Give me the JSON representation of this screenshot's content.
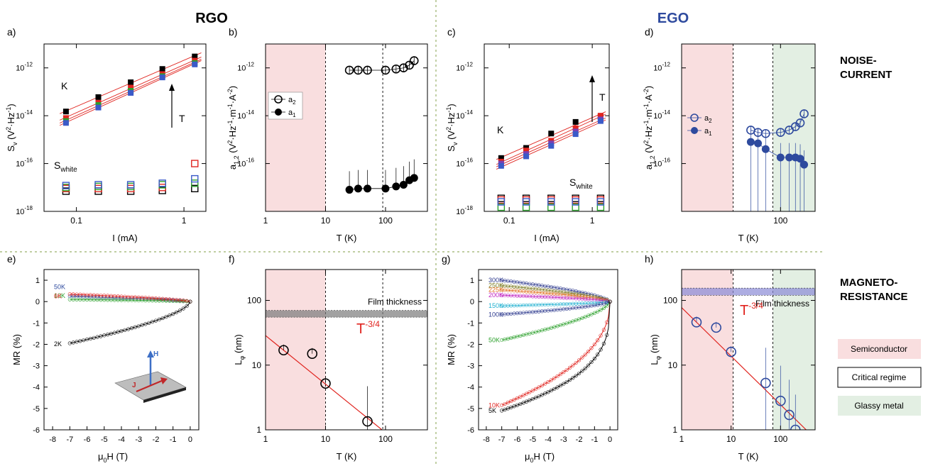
{
  "header": {
    "left": "RGO",
    "right": "EGO",
    "right_color": "#2e4a9e"
  },
  "row_labels": {
    "top": [
      "NOISE-",
      "CURRENT"
    ],
    "bottom": [
      "MAGNETO-",
      "RESISTANCE"
    ]
  },
  "legend_regimes": [
    {
      "label": "Semiconductor",
      "color": "#f9dedf"
    },
    {
      "label": "Critical regime",
      "color": "#ffffff"
    },
    {
      "label": "Glassy metal",
      "color": "#e3efe3"
    }
  ],
  "colors": {
    "shade_red": "#f9dedf",
    "shade_green": "#e3efe3",
    "fit": "#e0241f",
    "blue": "#2e4a9e",
    "black": "#000000"
  },
  "chart_data": [
    {
      "panel": "a)",
      "type": "scatter",
      "xlabel": "I (mA)",
      "ylabel": "S_v (V²·Hz⁻¹)",
      "xscale": "log",
      "yscale": "log",
      "xlim": [
        0.05,
        1.6
      ],
      "ylim": [
        1e-18,
        1e-11
      ],
      "xticks": [
        {
          "v": 0.1,
          "label": "0.1"
        },
        {
          "v": 1,
          "label": "1"
        }
      ],
      "yticks": [
        {
          "e": "-18"
        },
        {
          "e": "-16"
        },
        {
          "e": "-14"
        },
        {
          "e": "-12"
        }
      ],
      "annotations": [
        "K",
        "T",
        "S_white"
      ],
      "x": [
        0.08,
        0.16,
        0.32,
        0.63,
        1.26
      ],
      "series": [
        {
          "color": "#000000",
          "marker": "square",
          "values": [
            1.5e-14,
            6e-14,
            2.5e-13,
            9e-13,
            3e-12
          ]
        },
        {
          "color": "#e0241f",
          "marker": "square",
          "values": [
            8e-15,
            3.5e-14,
            1.5e-13,
            5.5e-13,
            2e-12
          ]
        },
        {
          "color": "#2ca02c",
          "marker": "square",
          "values": [
            6e-15,
            2.8e-14,
            1.1e-13,
            4.5e-13,
            1.6e-12
          ]
        },
        {
          "color": "#3b5ac8",
          "marker": "square",
          "values": [
            5e-15,
            2.2e-14,
            9e-14,
            4e-13,
            1.4e-12
          ]
        },
        {
          "color": "#000000",
          "marker": "open-square",
          "values": [
            7e-18,
            7e-18,
            7e-18,
            7.5e-18,
            9e-18
          ]
        },
        {
          "color": "#e0241f",
          "marker": "open-square",
          "values": [
            9e-18,
            9e-18,
            9e-18,
            1e-17,
            1e-16
          ]
        },
        {
          "color": "#2ca02c",
          "marker": "open-square",
          "values": [
            1e-17,
            1.1e-17,
            1.1e-17,
            1.3e-17,
            1.5e-17
          ]
        },
        {
          "color": "#3b5ac8",
          "marker": "open-square",
          "values": [
            1.2e-17,
            1.3e-17,
            1.3e-17,
            1.5e-17,
            2.3e-17
          ]
        }
      ]
    },
    {
      "panel": "b)",
      "type": "scatter",
      "xlabel": "T (K)",
      "ylabel": "a_1,2 (V²·Hz⁻¹·m⁻¹·A⁻²)",
      "xscale": "log",
      "yscale": "log",
      "xlim": [
        1,
        500
      ],
      "ylim": [
        1e-18,
        1e-11
      ],
      "xticks": [
        {
          "v": 1,
          "label": "1"
        },
        {
          "v": 10,
          "label": "10"
        },
        {
          "v": 100,
          "label": "100"
        }
      ],
      "yticks": [
        {
          "e": "-16"
        },
        {
          "e": "-14"
        },
        {
          "e": "-12"
        }
      ],
      "legend": [
        "a₂",
        "a₁"
      ],
      "series": [
        {
          "name": "a₂",
          "marker": "open-circle",
          "color": "#000000",
          "x": [
            25,
            35,
            50,
            100,
            150,
            200,
            250,
            300
          ],
          "values": [
            8e-13,
            8e-13,
            8e-13,
            8e-13,
            9e-13,
            1e-12,
            1.3e-12,
            2e-12
          ]
        },
        {
          "name": "a₁",
          "marker": "filled-circle",
          "color": "#000000",
          "x": [
            25,
            35,
            50,
            100,
            150,
            200,
            250,
            300
          ],
          "values": [
            8e-18,
            9e-18,
            9e-18,
            9e-18,
            1.1e-17,
            1.3e-17,
            2e-17,
            2.5e-17
          ]
        }
      ]
    },
    {
      "panel": "c)",
      "type": "scatter",
      "xlabel": "I (mA)",
      "ylabel": "S_v (V²·Hz⁻¹)",
      "xscale": "log",
      "yscale": "log",
      "xlim": [
        0.05,
        1.6
      ],
      "ylim": [
        1e-18,
        1e-11
      ],
      "xticks": [
        {
          "v": 0.1,
          "label": "0.1"
        },
        {
          "v": 1,
          "label": "1"
        }
      ],
      "yticks": [
        {
          "e": "-18"
        },
        {
          "e": "-16"
        },
        {
          "e": "-14"
        },
        {
          "e": "-12"
        }
      ],
      "annotations": [
        "K",
        "T",
        "S_white"
      ],
      "x": [
        0.08,
        0.16,
        0.32,
        0.63,
        1.26
      ],
      "series": [
        {
          "color": "#000000",
          "marker": "square",
          "values": [
            1.7e-16,
            4.5e-16,
            1.8e-15,
            5.5e-15,
            9e-15
          ]
        },
        {
          "color": "#e0241f",
          "marker": "square",
          "values": [
            1.2e-16,
            3.5e-16,
            9e-16,
            3e-15,
            1e-14
          ]
        },
        {
          "color": "#7b3fb0",
          "marker": "square",
          "values": [
            1e-16,
            2.5e-16,
            7e-16,
            2.2e-15,
            7e-15
          ]
        },
        {
          "color": "#3b5ac8",
          "marker": "square",
          "values": [
            8e-17,
            2e-16,
            5.5e-16,
            1.7e-15,
            6e-15
          ]
        },
        {
          "color": "#000000",
          "marker": "open-square",
          "values": [
            3.5e-18,
            3.5e-18,
            3.5e-18,
            3.5e-18,
            3.5e-18
          ]
        },
        {
          "color": "#e0241f",
          "marker": "open-square",
          "values": [
            3e-18,
            3e-18,
            3e-18,
            3e-18,
            3e-18
          ]
        },
        {
          "color": "#2ca02c",
          "marker": "open-square",
          "values": [
            1.5e-18,
            1.5e-18,
            1.5e-18,
            1.5e-18,
            1.5e-18
          ]
        },
        {
          "color": "#3b5ac8",
          "marker": "open-square",
          "values": [
            2.5e-18,
            2.5e-18,
            2.5e-18,
            2.5e-18,
            2.5e-18
          ]
        }
      ]
    },
    {
      "panel": "d)",
      "type": "scatter",
      "xlabel": "T (K)",
      "ylabel": "a_1,2 (V²·Hz⁻¹·m⁻¹·A⁻²)",
      "xscale": "log",
      "yscale": "log",
      "xlim": [
        1,
        500
      ],
      "ylim": [
        1e-18,
        1e-11
      ],
      "xticks": [
        {
          "v": 100,
          "label": "100"
        }
      ],
      "yticks": [
        {
          "e": "-16"
        },
        {
          "e": "-14"
        },
        {
          "e": "-12"
        }
      ],
      "legend": [
        "a₂",
        "a₁"
      ],
      "series": [
        {
          "name": "a₂",
          "marker": "open-circle",
          "color": "#2e4a9e",
          "x": [
            25,
            35,
            50,
            100,
            150,
            200,
            250,
            300
          ],
          "values": [
            2.5e-15,
            2e-15,
            1.8e-15,
            2e-15,
            2.5e-15,
            3.5e-15,
            5e-15,
            1.2e-14
          ]
        },
        {
          "name": "a₁",
          "marker": "filled-circle",
          "color": "#2e4a9e",
          "x": [
            25,
            35,
            50,
            100,
            150,
            200,
            250,
            300
          ],
          "values": [
            8e-16,
            7e-16,
            4e-16,
            1.8e-16,
            1.8e-16,
            1.8e-16,
            1.6e-16,
            9e-17
          ]
        }
      ]
    },
    {
      "panel": "e)",
      "type": "line",
      "xlabel": "μ₀H (T)",
      "ylabel": "MR (%)",
      "xlim": [
        -8.5,
        0.5
      ],
      "ylim": [
        -6,
        1.5
      ],
      "xticks": [
        -8,
        -7,
        -6,
        -5,
        -4,
        -3,
        -2,
        -1,
        0
      ],
      "yticks": [
        -6,
        -5,
        -4,
        -3,
        -2,
        -1,
        0,
        1
      ],
      "inset_labels": [
        "H",
        "J"
      ],
      "series": [
        {
          "name": "50K",
          "color": "#2e4a9e",
          "mr_at_minus7": 0.25,
          "shape": 1.5
        },
        {
          "name": "10K",
          "color": "#2ca02c",
          "mr_at_minus7": 0.1,
          "shape": 1.5
        },
        {
          "name": "6K",
          "color": "#e0241f",
          "mr_at_minus7": 0.35,
          "shape": 1.5
        },
        {
          "name": "2K",
          "color": "#000000",
          "mr_at_minus7": -1.95,
          "shape": 1.6
        }
      ]
    },
    {
      "panel": "f)",
      "type": "scatter",
      "xlabel": "T (K)",
      "ylabel": "L_φ (nm)",
      "xscale": "log",
      "yscale": "log",
      "xlim": [
        1,
        500
      ],
      "ylim": [
        1,
        300
      ],
      "xticks": [
        {
          "v": 1,
          "label": "1"
        },
        {
          "v": 10,
          "label": "10"
        },
        {
          "v": 100,
          "label": "100"
        }
      ],
      "yticks": [
        {
          "v": 1,
          "label": "1"
        },
        {
          "v": 10,
          "label": "10"
        },
        {
          "v": 100,
          "label": "100"
        }
      ],
      "film_thickness_label": "Film thickness",
      "film_thickness_nm": [
        55,
        70
      ],
      "fit_label": "T",
      "fit_exponent": "-3/4",
      "series": [
        {
          "marker": "open-circle",
          "color": "#000000",
          "x": [
            2,
            6,
            10,
            50
          ],
          "values": [
            17,
            15,
            5.2,
            1.35
          ]
        }
      ]
    },
    {
      "panel": "g)",
      "type": "line",
      "xlabel": "μ₀H (T)",
      "ylabel": "MR (%)",
      "xlim": [
        -8.5,
        0.5
      ],
      "ylim": [
        -6,
        1.5
      ],
      "xticks": [
        -8,
        -7,
        -6,
        -5,
        -4,
        -3,
        -2,
        -1,
        0
      ],
      "yticks": [
        -6,
        -5,
        -4,
        -3,
        -2,
        -1,
        0,
        1
      ],
      "series": [
        {
          "name": "300K",
          "color": "#2e3a8e",
          "mr_at_minus7": 1.0,
          "shape": 1.6
        },
        {
          "name": "250K",
          "color": "#7a7a20",
          "mr_at_minus7": 0.75,
          "shape": 1.6
        },
        {
          "name": "225K",
          "color": "#e07020",
          "mr_at_minus7": 0.55,
          "shape": 1.6
        },
        {
          "name": "200K",
          "color": "#c020c0",
          "mr_at_minus7": 0.3,
          "shape": 1.6
        },
        {
          "name": "150K",
          "color": "#20b0d0",
          "mr_at_minus7": -0.2,
          "shape": 1.6
        },
        {
          "name": "100K",
          "color": "#2e3a8e",
          "mr_at_minus7": -0.6,
          "shape": 1.6
        },
        {
          "name": "50K",
          "color": "#2ca02c",
          "mr_at_minus7": -1.8,
          "shape": 1.6
        },
        {
          "name": "10K",
          "color": "#e0241f",
          "mr_at_minus7": -4.85,
          "shape": 2.2
        },
        {
          "name": "5K",
          "color": "#000000",
          "mr_at_minus7": -5.1,
          "shape": 3.0
        }
      ]
    },
    {
      "panel": "h)",
      "type": "scatter",
      "xlabel": "T (K)",
      "ylabel": "L_φ (nm)",
      "xscale": "log",
      "yscale": "log",
      "xlim": [
        1,
        500
      ],
      "ylim": [
        1,
        300
      ],
      "xticks": [
        {
          "v": 1,
          "label": "1"
        },
        {
          "v": 10,
          "label": "10"
        },
        {
          "v": 100,
          "label": "100"
        }
      ],
      "yticks": [
        {
          "v": 1,
          "label": "1"
        },
        {
          "v": 10,
          "label": "10"
        },
        {
          "v": 100,
          "label": "100"
        }
      ],
      "film_thickness_label": "Film thickness",
      "film_thickness_nm": [
        120,
        155
      ],
      "fit_label": "T",
      "fit_exponent": "-3/4",
      "series": [
        {
          "marker": "open-circle",
          "color": "#2e4a9e",
          "x": [
            2,
            5,
            10,
            50,
            100,
            150,
            200
          ],
          "values": [
            46,
            38,
            16,
            5.3,
            2.8,
            1.7,
            1.0
          ]
        }
      ]
    }
  ]
}
